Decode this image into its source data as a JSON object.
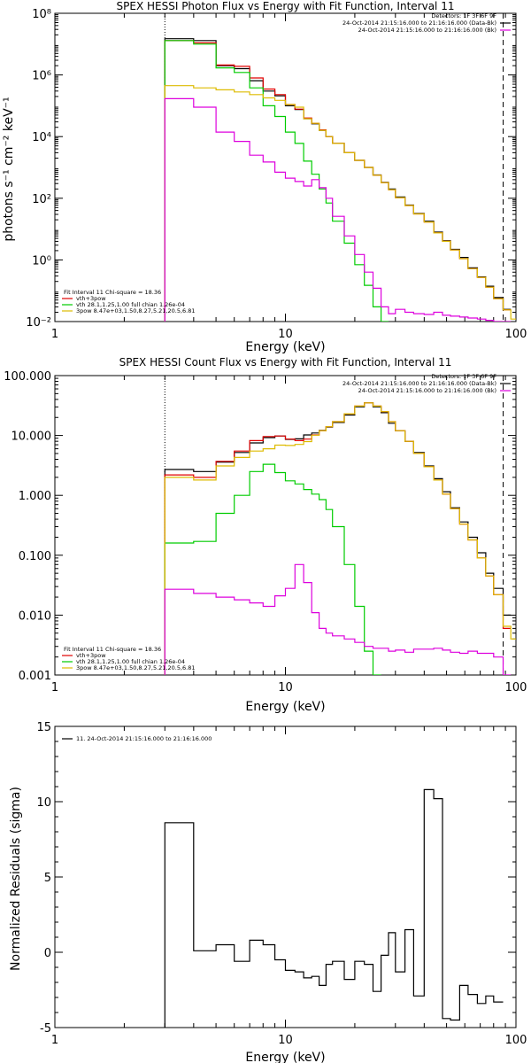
{
  "chart_data": [
    {
      "type": "line",
      "title": "SPEX HESSI Photon Flux vs Energy with Fit Function, Interval 11",
      "xlabel": "Energy (keV)",
      "ylabel": "photons s⁻¹ cm⁻² keV⁻¹",
      "xscale": "log",
      "yscale": "log",
      "xlim": [
        1,
        100
      ],
      "ylim": [
        0.01,
        100000000
      ],
      "xticks": [
        {
          "v": 1,
          "label": "1"
        },
        {
          "v": 10,
          "label": "10"
        },
        {
          "v": 100,
          "label": "100"
        }
      ],
      "yticks": [
        {
          "v": 0.01,
          "label": "10⁻²"
        },
        {
          "v": 1,
          "label": "10⁰"
        },
        {
          "v": 100,
          "label": "10²"
        },
        {
          "v": 10000,
          "label": "10⁴"
        },
        {
          "v": 1000000,
          "label": "10⁶"
        },
        {
          "v": 100000000,
          "label": "10⁸"
        }
      ],
      "vlines": [
        {
          "x": 3,
          "style": "dotted"
        },
        {
          "x": 88,
          "style": "dashed"
        }
      ],
      "legend_top": [
        "Detectors: 1F 3F 6F 9F",
        "24-Oct-2014 21:15:16.000 to 21:16:16.000 (Data-Bk)",
        "24-Oct-2014 21:15:16.000 to 21:16:16.000 (Bk)"
      ],
      "legend_bottom": [
        "Fit Interval 11    Chi-square = 18.36",
        "vth+3pow",
        "vth 28.1,1.25,1.00  full chian 1.26e-04",
        "3pow 8.47e+03,1.50,8.27,5.21,20.5,6.81"
      ],
      "bin_edges": [
        3,
        4,
        5,
        6,
        7,
        8,
        9,
        10,
        11,
        12,
        13,
        14,
        15,
        16,
        18,
        20,
        22,
        24,
        26,
        28,
        30,
        33,
        36,
        40,
        44,
        48,
        52,
        57,
        62,
        68,
        74,
        80,
        88,
        95,
        100
      ],
      "series": [
        {
          "name": "Data-Bk",
          "color": "#000000",
          "values": [
            15000000,
            13000000,
            2000000,
            1600000,
            650000,
            300000,
            210000,
            100000,
            75000,
            38000,
            26000,
            16000,
            10000,
            6000,
            3000,
            1700,
            1000,
            570,
            330,
            200,
            110,
            60,
            32,
            18,
            8,
            4.2,
            2.2,
            1.2,
            0.55,
            0.28,
            0.14,
            0.06,
            0.025,
            null
          ]
        },
        {
          "name": "vth+3pow",
          "color": "#e00000",
          "values": [
            13000000,
            11000000,
            2100000,
            1900000,
            800000,
            350000,
            230000,
            110000,
            78000,
            40000,
            27000,
            16500,
            10000,
            6000,
            3000,
            1700,
            1000,
            560,
            320,
            190,
            105,
            58,
            31,
            17,
            7.5,
            4,
            2.1,
            1.1,
            0.52,
            0.27,
            0.13,
            0.055,
            0.024,
            null
          ]
        },
        {
          "name": "vth",
          "color": "#00cc00",
          "values": [
            13000000,
            10000000,
            1700000,
            1200000,
            380000,
            100000,
            45000,
            14000,
            6000,
            1600,
            600,
            200,
            70,
            18,
            3.5,
            0.7,
            0.15,
            0.03,
            0.01,
            null,
            null,
            null,
            null,
            null,
            null,
            null,
            null,
            null,
            null,
            null,
            null,
            null,
            null,
            null
          ]
        },
        {
          "name": "3pow",
          "color": "#ddbb00",
          "values": [
            450000,
            380000,
            330000,
            280000,
            230000,
            180000,
            150000,
            110000,
            90000,
            38000,
            27000,
            16000,
            10000,
            6000,
            3000,
            1700,
            1000,
            560,
            320,
            190,
            105,
            58,
            31,
            17,
            7.5,
            4,
            2.1,
            1.1,
            0.52,
            0.27,
            0.13,
            0.055,
            0.024,
            0.012
          ]
        },
        {
          "name": "Bk",
          "color": "#dd00dd",
          "values": [
            170000,
            90000,
            14000,
            7000,
            2500,
            1500,
            700,
            450,
            350,
            250,
            400,
            220,
            100,
            26,
            6,
            1.5,
            0.4,
            0.12,
            0.03,
            0.018,
            0.025,
            0.02,
            0.018,
            0.017,
            0.02,
            0.016,
            0.015,
            0.014,
            0.013,
            0.012,
            0.011,
            0.01,
            0.01,
            null
          ]
        }
      ]
    },
    {
      "type": "line",
      "title": "SPEX HESSI Count Flux vs Energy with Fit Function, Interval 11",
      "xlabel": "Energy (keV)",
      "ylabel": "",
      "xscale": "log",
      "yscale": "log",
      "xlim": [
        1,
        100
      ],
      "ylim": [
        0.001,
        100
      ],
      "xticks": [
        {
          "v": 1,
          "label": "1"
        },
        {
          "v": 10,
          "label": "10"
        },
        {
          "v": 100,
          "label": "100"
        }
      ],
      "yticks": [
        {
          "v": 0.001,
          "label": "0.001"
        },
        {
          "v": 0.01,
          "label": "0.010"
        },
        {
          "v": 0.1,
          "label": "0.100"
        },
        {
          "v": 1,
          "label": "1.000"
        },
        {
          "v": 10,
          "label": "10.000"
        },
        {
          "v": 100,
          "label": "100.000"
        }
      ],
      "vlines": [
        {
          "x": 3,
          "style": "dotted"
        },
        {
          "x": 88,
          "style": "dashed"
        }
      ],
      "legend_top": [
        "Detectors: 1F 3F 6F 9F",
        "24-Oct-2014 21:15:16.000 to 21:16:16.000 (Data-Bk)",
        "24-Oct-2014 21:15:16.000 to 21:16:16.000 (Bk)"
      ],
      "legend_bottom": [
        "Fit Interval 11    Chi-square = 18.36",
        "vth+3pow",
        "vth 28.1,1.25,1.00  full chian 1.26e-04",
        "3pow 8.47e+03,1.50,8.27,5.21,20.5,6.81"
      ],
      "bin_edges": [
        3,
        4,
        5,
        6,
        7,
        8,
        9,
        10,
        11,
        12,
        13,
        14,
        15,
        16,
        18,
        20,
        22,
        24,
        26,
        28,
        30,
        33,
        36,
        40,
        44,
        48,
        52,
        57,
        62,
        68,
        74,
        80,
        88,
        95,
        100
      ],
      "series": [
        {
          "name": "Data-Bk",
          "color": "#000000",
          "values": [
            2.7,
            2.5,
            3.6,
            5.2,
            7.5,
            9.2,
            9.8,
            8.6,
            8.8,
            10.2,
            11.0,
            12.2,
            13.8,
            16.5,
            22,
            30,
            35,
            30,
            24,
            16,
            12,
            8,
            5.2,
            3.1,
            1.9,
            1.15,
            0.62,
            0.36,
            0.2,
            0.11,
            0.05,
            0.028,
            0.01,
            null
          ]
        },
        {
          "name": "vth+3pow",
          "color": "#e00000",
          "values": [
            2.2,
            2.0,
            3.7,
            5.5,
            8.2,
            9.6,
            9.8,
            8.7,
            8.2,
            8.7,
            10.2,
            12.0,
            14.0,
            17.0,
            23,
            31,
            35,
            31,
            25,
            17,
            12,
            8,
            5,
            3,
            1.8,
            1.05,
            0.6,
            0.33,
            0.18,
            0.09,
            0.045,
            0.022,
            0.006,
            null
          ]
        },
        {
          "name": "vth",
          "color": "#00cc00",
          "values": [
            0.16,
            0.17,
            0.5,
            1.0,
            2.5,
            3.3,
            2.4,
            1.75,
            1.55,
            1.25,
            1.05,
            0.85,
            0.58,
            0.3,
            0.07,
            0.014,
            0.0025,
            0.001,
            null,
            null,
            null,
            null,
            null,
            null,
            null,
            null,
            null,
            null,
            null,
            null,
            null,
            null,
            null,
            null
          ]
        },
        {
          "name": "3pow",
          "color": "#ddbb00",
          "values": [
            2.0,
            1.8,
            3.1,
            4.3,
            5.5,
            6.0,
            6.9,
            6.8,
            7.1,
            7.9,
            10.1,
            12.0,
            14.0,
            17.0,
            23,
            31,
            35,
            31,
            25,
            17,
            12,
            8,
            5,
            3,
            1.8,
            1.05,
            0.6,
            0.33,
            0.18,
            0.09,
            0.045,
            0.022,
            0.0065,
            0.004
          ]
        },
        {
          "name": "Bk",
          "color": "#dd00dd",
          "values": [
            0.027,
            0.023,
            0.02,
            0.018,
            0.016,
            0.014,
            0.021,
            0.028,
            0.07,
            0.035,
            0.011,
            0.006,
            0.005,
            0.0045,
            0.004,
            0.0035,
            0.003,
            0.0028,
            0.0028,
            0.0025,
            0.0026,
            0.0024,
            0.0027,
            0.0027,
            0.0028,
            0.0026,
            0.0024,
            0.0023,
            0.0025,
            0.0023,
            0.0023,
            0.002,
            0.001,
            null
          ]
        }
      ]
    },
    {
      "type": "line",
      "title": "",
      "xlabel": "Energy (keV)",
      "ylabel": "Normalized Residuals (sigma)",
      "xscale": "log",
      "yscale": "linear",
      "xlim": [
        1,
        100
      ],
      "ylim": [
        -5,
        15
      ],
      "xticks": [
        {
          "v": 1,
          "label": "1"
        },
        {
          "v": 10,
          "label": "10"
        },
        {
          "v": 100,
          "label": "100"
        }
      ],
      "yticks": [
        {
          "v": -5,
          "label": "-5"
        },
        {
          "v": 0,
          "label": "0"
        },
        {
          "v": 5,
          "label": "5"
        },
        {
          "v": 10,
          "label": "10"
        },
        {
          "v": 15,
          "label": "15"
        }
      ],
      "legend_top": [
        "11. 24-Oct-2014 21:15:16.000 to 21:16:16.000"
      ],
      "bin_edges": [
        3,
        4,
        5,
        6,
        7,
        8,
        9,
        10,
        11,
        12,
        13,
        14,
        15,
        16,
        18,
        20,
        22,
        24,
        26,
        28,
        30,
        33,
        36,
        40,
        44,
        48,
        52,
        57,
        62,
        68,
        74,
        80,
        88,
        95,
        100
      ],
      "series": [
        {
          "name": "11. 24-Oct-2014 21:15:16.000 to 21:16:16.000",
          "color": "#000000",
          "values": [
            8.6,
            0.1,
            0.5,
            -0.6,
            0.8,
            0.5,
            -0.5,
            -1.2,
            -1.3,
            -1.7,
            -1.6,
            -2.2,
            -0.8,
            -0.6,
            -1.8,
            -0.6,
            -0.8,
            -2.6,
            -0.2,
            1.3,
            -1.3,
            1.5,
            -2.9,
            10.8,
            10.2,
            -4.4,
            -4.5,
            -2.2,
            -2.8,
            -3.4,
            -2.9,
            -3.3,
            null,
            null
          ]
        }
      ]
    }
  ]
}
